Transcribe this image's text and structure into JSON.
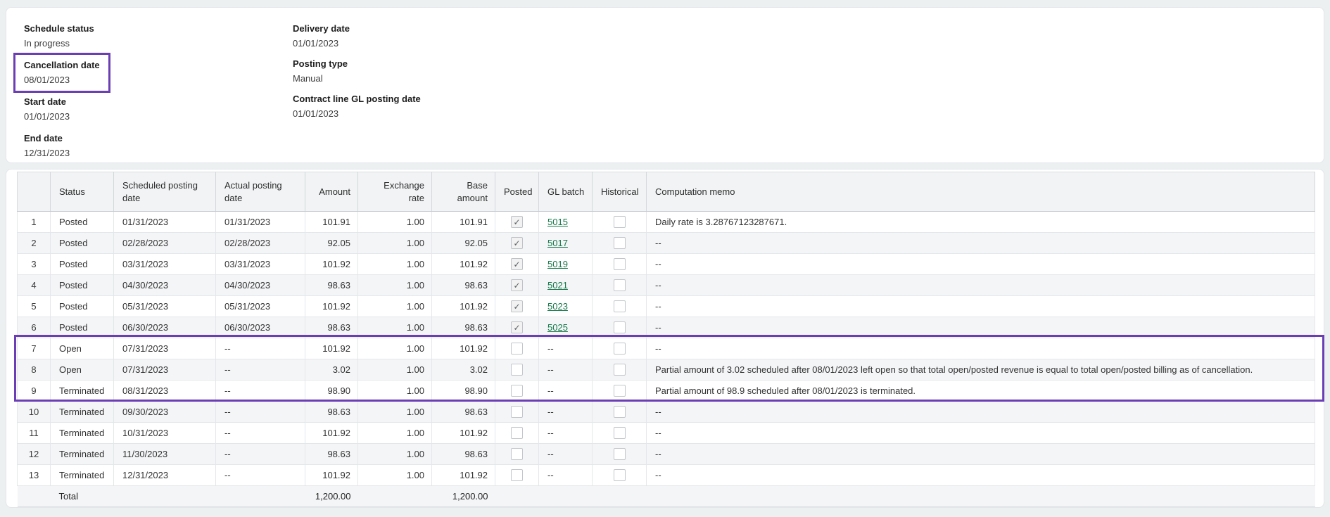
{
  "header": {
    "fields_left": [
      {
        "label": "Schedule status",
        "value": "In progress"
      },
      {
        "label": "Cancellation date",
        "value": "08/01/2023"
      },
      {
        "label": "Start date",
        "value": "01/01/2023"
      },
      {
        "label": "End date",
        "value": "12/31/2023"
      }
    ],
    "fields_right": [
      {
        "label": "Delivery date",
        "value": "01/01/2023"
      },
      {
        "label": "Posting type",
        "value": "Manual"
      },
      {
        "label": "Contract line GL posting date",
        "value": "01/01/2023"
      }
    ],
    "highlight_color": "#6b3eb5"
  },
  "table": {
    "columns": {
      "num": "",
      "status": "Status",
      "scheduled": "Scheduled posting date",
      "actual": "Actual posting date",
      "amount": "Amount",
      "rate": "Exchange rate",
      "base": "Base amount",
      "posted": "Posted",
      "gl_batch": "GL batch",
      "historical": "Historical",
      "memo": "Computation memo"
    },
    "rows": [
      {
        "n": "1",
        "status": "Posted",
        "scheduled": "01/31/2023",
        "actual": "01/31/2023",
        "amount": "101.91",
        "rate": "1.00",
        "base": "101.91",
        "posted": true,
        "gl_batch": "5015",
        "historical": false,
        "memo": "Daily rate is 3.28767123287671."
      },
      {
        "n": "2",
        "status": "Posted",
        "scheduled": "02/28/2023",
        "actual": "02/28/2023",
        "amount": "92.05",
        "rate": "1.00",
        "base": "92.05",
        "posted": true,
        "gl_batch": "5017",
        "historical": false,
        "memo": "--"
      },
      {
        "n": "3",
        "status": "Posted",
        "scheduled": "03/31/2023",
        "actual": "03/31/2023",
        "amount": "101.92",
        "rate": "1.00",
        "base": "101.92",
        "posted": true,
        "gl_batch": "5019",
        "historical": false,
        "memo": "--"
      },
      {
        "n": "4",
        "status": "Posted",
        "scheduled": "04/30/2023",
        "actual": "04/30/2023",
        "amount": "98.63",
        "rate": "1.00",
        "base": "98.63",
        "posted": true,
        "gl_batch": "5021",
        "historical": false,
        "memo": "--"
      },
      {
        "n": "5",
        "status": "Posted",
        "scheduled": "05/31/2023",
        "actual": "05/31/2023",
        "amount": "101.92",
        "rate": "1.00",
        "base": "101.92",
        "posted": true,
        "gl_batch": "5023",
        "historical": false,
        "memo": "--"
      },
      {
        "n": "6",
        "status": "Posted",
        "scheduled": "06/30/2023",
        "actual": "06/30/2023",
        "amount": "98.63",
        "rate": "1.00",
        "base": "98.63",
        "posted": true,
        "gl_batch": "5025",
        "historical": false,
        "memo": "--"
      },
      {
        "n": "7",
        "status": "Open",
        "scheduled": "07/31/2023",
        "actual": "--",
        "amount": "101.92",
        "rate": "1.00",
        "base": "101.92",
        "posted": false,
        "gl_batch": "--",
        "historical": false,
        "memo": "--"
      },
      {
        "n": "8",
        "status": "Open",
        "scheduled": "07/31/2023",
        "actual": "--",
        "amount": "3.02",
        "rate": "1.00",
        "base": "3.02",
        "posted": false,
        "gl_batch": "--",
        "historical": false,
        "memo": "Partial amount of 3.02 scheduled after 08/01/2023 left open so that total open/posted revenue is equal to total open/posted billing as of cancellation."
      },
      {
        "n": "9",
        "status": "Terminated",
        "scheduled": "08/31/2023",
        "actual": "--",
        "amount": "98.90",
        "rate": "1.00",
        "base": "98.90",
        "posted": false,
        "gl_batch": "--",
        "historical": false,
        "memo": "Partial amount of 98.9 scheduled after 08/01/2023 is terminated."
      },
      {
        "n": "10",
        "status": "Terminated",
        "scheduled": "09/30/2023",
        "actual": "--",
        "amount": "98.63",
        "rate": "1.00",
        "base": "98.63",
        "posted": false,
        "gl_batch": "--",
        "historical": false,
        "memo": "--"
      },
      {
        "n": "11",
        "status": "Terminated",
        "scheduled": "10/31/2023",
        "actual": "--",
        "amount": "101.92",
        "rate": "1.00",
        "base": "101.92",
        "posted": false,
        "gl_batch": "--",
        "historical": false,
        "memo": "--"
      },
      {
        "n": "12",
        "status": "Terminated",
        "scheduled": "11/30/2023",
        "actual": "--",
        "amount": "98.63",
        "rate": "1.00",
        "base": "98.63",
        "posted": false,
        "gl_batch": "--",
        "historical": false,
        "memo": "--"
      },
      {
        "n": "13",
        "status": "Terminated",
        "scheduled": "12/31/2023",
        "actual": "--",
        "amount": "101.92",
        "rate": "1.00",
        "base": "101.92",
        "posted": false,
        "gl_batch": "--",
        "historical": false,
        "memo": "--"
      }
    ],
    "highlighted_row_numbers": [
      7,
      8,
      9
    ],
    "total": {
      "label": "Total",
      "amount": "1,200.00",
      "base_amount": "1,200.00"
    },
    "link_color": "#15784a"
  }
}
